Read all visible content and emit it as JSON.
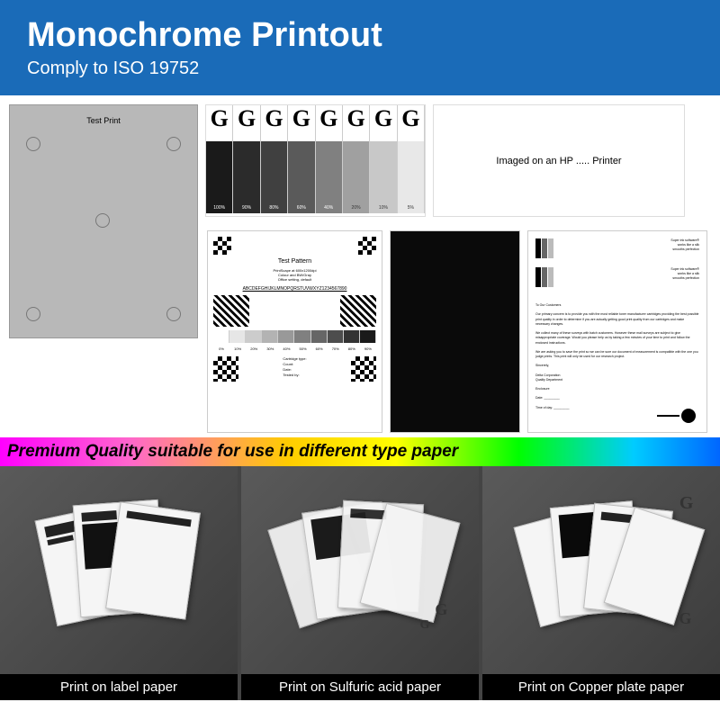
{
  "header": {
    "title": "Monochrome Printout",
    "subtitle": "Comply to ISO 19752"
  },
  "banner": {
    "text": "Premium Quality suitable for use in different type paper"
  },
  "colors": {
    "header_bg": "#1a6bb8",
    "gradient_bars": [
      "#1a1a1a",
      "#2b2b2b",
      "#404040",
      "#5a5a5a",
      "#808080",
      "#a0a0a0",
      "#c8c8c8",
      "#e8e8e8"
    ],
    "gradient_labels": [
      "100%",
      "90%",
      "80%",
      "60%",
      "40%",
      "20%",
      "10%",
      "5%"
    ]
  },
  "samples": {
    "testprint_label": "Test Print",
    "g_letter": "G",
    "hp_text": "Imaged on an HP ..... Printer",
    "pattern": {
      "title": "Test Pattern",
      "line1": "PrintScape at 600x1200dpi",
      "line2": "Colour and BW/Gray",
      "line3": "Office setting, default",
      "alphabet": "ABCDEFGHIJKLMNOPQRSTUVWXYZ1234567890",
      "grad_pcts": [
        "0%",
        "10%",
        "20%",
        "30%",
        "40%",
        "50%",
        "60%",
        "70%",
        "80%",
        "90%"
      ],
      "info": {
        "l1": "Cartridge type:",
        "l2": "Count:",
        "l3": "Date:",
        "l4": "Tested by:"
      }
    },
    "letter": {
      "hdr1": "Super ink software®",
      "hdr2": "works like a silk",
      "hdr3": "smooths perfection",
      "greeting": "To Our Customers",
      "p1": "Our primary concern is to provide you with the most reliable toner manufacturer cartridges providing the best possible print quality in order to determine if you are actually getting good print quality from our cartridges and make necessary changes.",
      "p2": "We collect many of these surveys with batch customers. However these mail surveys are subject to give misappropriate coverage. Would you please help us by taking a few minutes of your time to print and follow the enclosed instructions.",
      "p3": "We are asking you to save the print so we can be sure our document of measurement is compatible with the one you judge prints. This print will only be used for our research project.",
      "closing": "Sincerely,",
      "dept": "Delta Corporation\nQuality Department",
      "encl": "Enclosure",
      "date": "Date:",
      "time": "Time of day:"
    }
  },
  "photos": {
    "captions": [
      "Print on label paper",
      "Print on Sulfuric acid paper",
      "Print on Copper plate paper"
    ]
  }
}
